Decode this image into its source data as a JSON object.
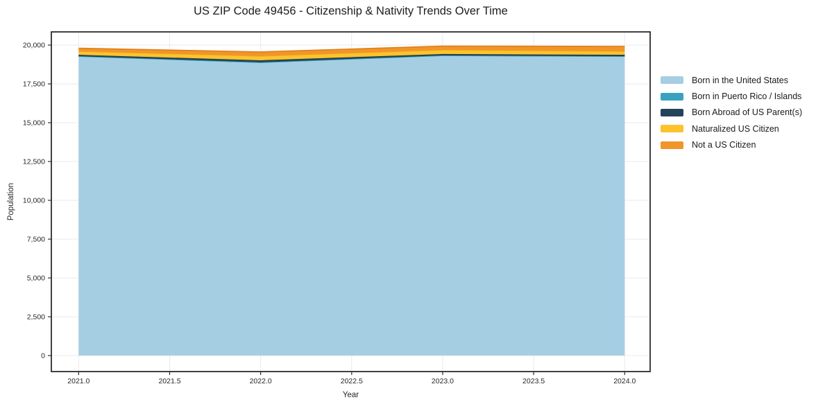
{
  "chart_data": {
    "type": "area",
    "stacked": true,
    "title": "US ZIP Code 49456 - Citizenship & Nativity Trends Over Time",
    "xlabel": "Year",
    "ylabel": "Population",
    "x": [
      2021,
      2022,
      2023,
      2024
    ],
    "series": [
      {
        "name": "Born in the United States",
        "color": "#a5cee3",
        "edge": null,
        "values": [
          19240,
          18840,
          19290,
          19240
        ]
      },
      {
        "name": "Born in Puerto Rico / Islands",
        "color": "#3aa2c1",
        "edge": "#3aa2c1",
        "values": [
          40,
          50,
          40,
          40
        ]
      },
      {
        "name": "Born Abroad of US Parent(s)",
        "color": "#234458",
        "edge": "#1c3a4c",
        "values": [
          95,
          130,
          95,
          95
        ]
      },
      {
        "name": "Naturalized US Citizen",
        "color": "#fcc32d",
        "edge": "#eeae1b",
        "values": [
          225,
          270,
          265,
          225
        ]
      },
      {
        "name": "Not a US Citizen",
        "color": "#f1952b",
        "edge": "#e07f16",
        "values": [
          200,
          270,
          245,
          315
        ]
      }
    ],
    "xticks": [
      2021.0,
      2021.5,
      2022.0,
      2022.5,
      2023.0,
      2023.5,
      2024.0
    ],
    "xtick_labels": [
      "2021.0",
      "2021.5",
      "2022.0",
      "2022.5",
      "2023.0",
      "2023.5",
      "2024.0"
    ],
    "yticks": [
      0,
      2500,
      5000,
      7500,
      10000,
      12500,
      15000,
      17500,
      20000
    ],
    "ytick_labels": [
      "0",
      "2,500",
      "5,000",
      "7,500",
      "10,000",
      "12,500",
      "15,000",
      "17,500",
      "20,000"
    ],
    "xlim": [
      2020.85,
      2024.14
    ],
    "ylim": [
      -1030,
      20850
    ],
    "grid": true,
    "legend_position": "right",
    "colors": {
      "grid": "#eaeaea",
      "spine": "#2b2b2b",
      "tick": "#2d2d2d",
      "text": "#262626",
      "background": "#ffffff"
    }
  }
}
